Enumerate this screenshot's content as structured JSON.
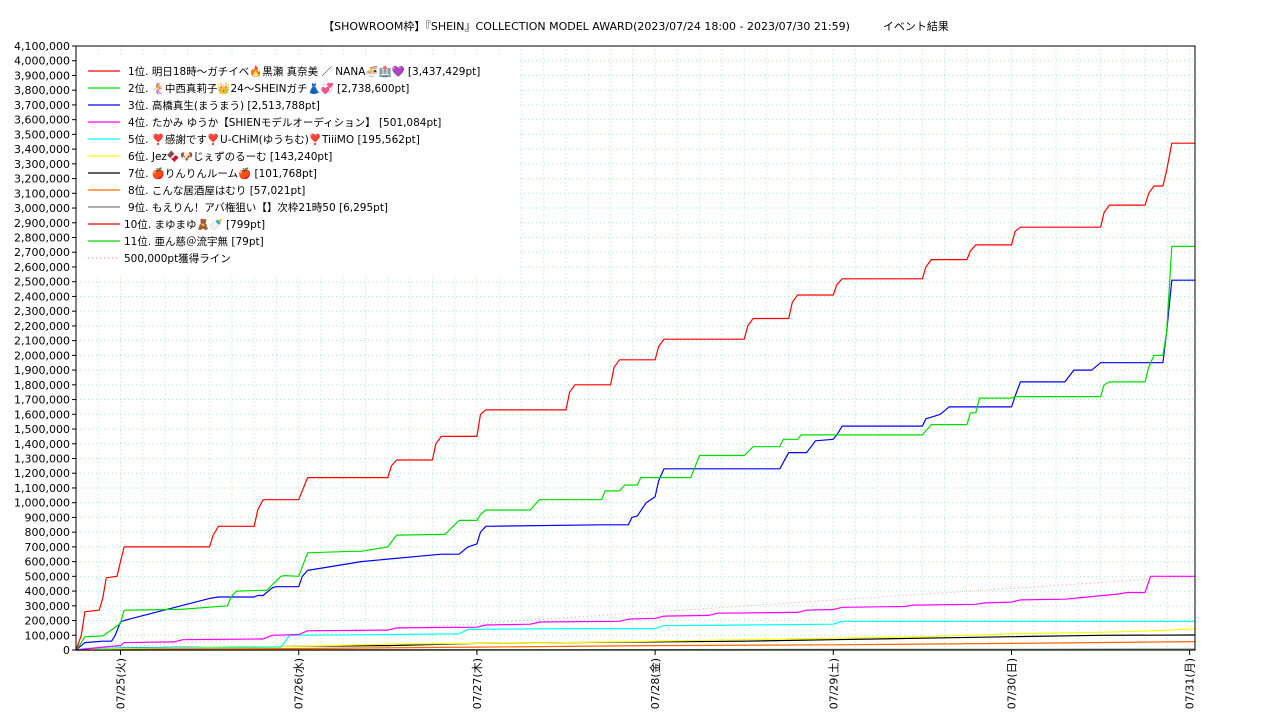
{
  "chart_data": {
    "type": "line",
    "title": "【SHOWROOM枠】『SHEIN』COLLECTION MODEL AWARD(2023/07/24 18:00 - 2023/07/30 21:59)　　　イベント結果",
    "ylim": [
      0,
      4100000
    ],
    "yticks": [
      0,
      100000,
      200000,
      300000,
      400000,
      500000,
      600000,
      700000,
      800000,
      900000,
      1000000,
      1100000,
      1200000,
      1300000,
      1400000,
      1500000,
      1600000,
      1700000,
      1800000,
      1900000,
      2000000,
      2100000,
      2200000,
      2300000,
      2400000,
      2500000,
      2600000,
      2700000,
      2800000,
      2900000,
      3000000,
      3100000,
      3200000,
      3300000,
      3400000,
      3500000,
      3600000,
      3700000,
      3800000,
      3900000,
      4000000,
      4100000
    ],
    "ytick_labels": [
      "0",
      "100,000",
      "200,000",
      "300,000",
      "400,000",
      "500,000",
      "600,000",
      "700,000",
      "800,000",
      "900,000",
      "1,000,000",
      "1,100,000",
      "1,200,000",
      "1,300,000",
      "1,400,000",
      "1,500,000",
      "1,600,000",
      "1,700,000",
      "1,800,000",
      "1,900,000",
      "2,000,000",
      "2,100,000",
      "2,200,000",
      "2,300,000",
      "2,400,000",
      "2,500,000",
      "2,600,000",
      "2,700,000",
      "2,800,000",
      "2,900,000",
      "3,000,000",
      "3,100,000",
      "3,200,000",
      "3,300,000",
      "3,400,000",
      "3,500,000",
      "3,600,000",
      "3,700,000",
      "3,800,000",
      "3,900,000",
      "4,000,000",
      "4,100,000"
    ],
    "xlim": [
      -0.25,
      6.03
    ],
    "xticks": [
      0,
      1,
      2,
      3,
      4,
      5,
      6
    ],
    "xtick_labels": [
      "07/25(火)",
      "07/26(水)",
      "07/27(木)",
      "07/28(金)",
      "07/29(土)",
      "07/30(日)",
      "07/31(月)"
    ],
    "grid": true,
    "legend_position": "top-left",
    "series": [
      {
        "name": "1位. 明日18時〜ガチイベ🔥黒瀬 真奈美 ／ NANA🍜🏥💜 [3,437,429pt]",
        "color": "#ff0000",
        "x": [
          -0.25,
          -0.22,
          -0.2,
          -0.12,
          -0.1,
          -0.08,
          -0.02,
          0.0,
          0.02,
          0.5,
          0.52,
          0.55,
          0.75,
          0.77,
          0.8,
          1.0,
          1.05,
          1.5,
          1.52,
          1.55,
          1.75,
          1.77,
          1.8,
          2.0,
          2.02,
          2.05,
          2.5,
          2.52,
          2.55,
          2.75,
          2.77,
          2.8,
          3.0,
          3.02,
          3.05,
          3.5,
          3.52,
          3.55,
          3.75,
          3.77,
          3.8,
          4.0,
          4.02,
          4.05,
          4.5,
          4.52,
          4.55,
          4.75,
          4.77,
          4.8,
          5.0,
          5.02,
          5.05,
          5.5,
          5.52,
          5.55,
          5.75,
          5.77,
          5.8,
          5.85,
          5.87,
          5.9,
          6.03
        ],
        "y": [
          0,
          100000,
          260000,
          270000,
          350000,
          490000,
          500000,
          600000,
          700000,
          700000,
          780000,
          840000,
          840000,
          950000,
          1020000,
          1020000,
          1170000,
          1170000,
          1250000,
          1290000,
          1290000,
          1400000,
          1450000,
          1450000,
          1600000,
          1630000,
          1630000,
          1750000,
          1800000,
          1800000,
          1920000,
          1970000,
          1970000,
          2060000,
          2110000,
          2110000,
          2200000,
          2250000,
          2250000,
          2360000,
          2410000,
          2410000,
          2480000,
          2520000,
          2520000,
          2600000,
          2650000,
          2650000,
          2710000,
          2750000,
          2750000,
          2840000,
          2870000,
          2870000,
          2970000,
          3020000,
          3020000,
          3100000,
          3150000,
          3150000,
          3250000,
          3440000,
          3440000
        ]
      },
      {
        "name": "2位. 🧜‍♀️中西真莉子👑24〜SHEINガチ👗💞 [2,738,600pt]",
        "color": "#00dd00",
        "x": [
          -0.25,
          -0.22,
          -0.2,
          -0.1,
          0.0,
          0.02,
          0.3,
          0.33,
          0.6,
          0.62,
          0.65,
          0.8,
          0.82,
          0.9,
          0.92,
          1.0,
          1.05,
          1.3,
          1.35,
          1.5,
          1.55,
          1.8,
          1.82,
          1.9,
          1.92,
          2.0,
          2.02,
          2.05,
          2.3,
          2.35,
          2.7,
          2.72,
          2.8,
          2.83,
          2.9,
          2.92,
          3.2,
          3.25,
          3.5,
          3.55,
          3.7,
          3.72,
          3.8,
          3.82,
          3.9,
          3.92,
          4.0,
          4.02,
          4.5,
          4.55,
          4.75,
          4.77,
          4.8,
          4.82,
          5.0,
          5.02,
          5.5,
          5.52,
          5.55,
          5.75,
          5.77,
          5.8,
          5.85,
          5.87,
          5.9,
          6.03
        ],
        "y": [
          0,
          50000,
          90000,
          95000,
          180000,
          270000,
          275000,
          275000,
          300000,
          360000,
          400000,
          405000,
          405000,
          500000,
          505000,
          500000,
          660000,
          670000,
          670000,
          700000,
          780000,
          785000,
          785000,
          880000,
          880000,
          880000,
          920000,
          950000,
          950000,
          1020000,
          1020000,
          1080000,
          1080000,
          1120000,
          1120000,
          1170000,
          1170000,
          1320000,
          1320000,
          1380000,
          1380000,
          1430000,
          1430000,
          1460000,
          1460000,
          1460000,
          1460000,
          1460000,
          1460000,
          1530000,
          1530000,
          1610000,
          1610000,
          1710000,
          1710000,
          1720000,
          1720000,
          1800000,
          1820000,
          1820000,
          1920000,
          2000000,
          2000000,
          2150000,
          2740000,
          2740000
        ],
        "note": ""
      },
      {
        "name": "3位. 高橋真生(まうまう) [2,513,788pt]",
        "color": "#0000ff",
        "x": [
          -0.25,
          -0.22,
          -0.2,
          -0.1,
          -0.05,
          -0.03,
          0.0,
          0.02,
          0.05,
          0.5,
          0.55,
          0.75,
          0.77,
          0.8,
          0.85,
          0.87,
          0.9,
          1.0,
          1.02,
          1.05,
          1.3,
          1.35,
          1.8,
          1.82,
          1.85,
          1.9,
          1.95,
          2.0,
          2.02,
          2.05,
          2.7,
          2.72,
          2.75,
          2.85,
          2.87,
          2.9,
          2.95,
          3.0,
          3.02,
          3.05,
          3.7,
          3.75,
          3.85,
          3.9,
          4.0,
          4.02,
          4.05,
          4.5,
          4.52,
          4.55,
          4.6,
          4.65,
          5.0,
          5.02,
          5.05,
          5.3,
          5.35,
          5.45,
          5.5,
          5.55,
          5.6,
          5.65,
          5.75,
          5.8,
          5.85,
          5.87,
          5.9,
          5.95,
          6.03
        ],
        "y": [
          0,
          30000,
          50000,
          60000,
          60000,
          100000,
          190000,
          200000,
          210000,
          350000,
          360000,
          360000,
          370000,
          370000,
          420000,
          430000,
          430000,
          430000,
          500000,
          540000,
          590000,
          600000,
          650000,
          650000,
          650000,
          650000,
          700000,
          720000,
          800000,
          840000,
          850000,
          850000,
          850000,
          850000,
          900000,
          910000,
          1000000,
          1040000,
          1150000,
          1230000,
          1230000,
          1340000,
          1340000,
          1420000,
          1430000,
          1460000,
          1520000,
          1520000,
          1570000,
          1580000,
          1600000,
          1650000,
          1650000,
          1720000,
          1820000,
          1820000,
          1900000,
          1900000,
          1950000,
          1950000,
          1950000,
          1950000,
          1950000,
          1950000,
          1950000,
          2150000,
          2510000,
          2510000,
          2510000
        ],
        "note": ""
      },
      {
        "name": "4位. たかみ ゆうか【SHIENモデルオーディション】 [501,084pt]",
        "color": "#ff00ff",
        "x": [
          -0.25,
          -0.1,
          0.0,
          0.02,
          0.3,
          0.35,
          0.8,
          0.85,
          1.0,
          1.05,
          1.5,
          1.55,
          2.0,
          2.05,
          2.3,
          2.35,
          2.8,
          2.85,
          3.0,
          3.05,
          3.3,
          3.35,
          3.8,
          3.85,
          4.0,
          4.05,
          4.4,
          4.45,
          4.8,
          4.85,
          5.0,
          5.05,
          5.3,
          5.35,
          5.6,
          5.65,
          5.75,
          5.78,
          6.03
        ],
        "y": [
          0,
          20000,
          30000,
          50000,
          55000,
          70000,
          75000,
          100000,
          105000,
          130000,
          135000,
          150000,
          155000,
          170000,
          175000,
          190000,
          195000,
          210000,
          215000,
          230000,
          235000,
          250000,
          255000,
          270000,
          275000,
          290000,
          295000,
          305000,
          310000,
          320000,
          325000,
          340000,
          345000,
          350000,
          380000,
          390000,
          390000,
          500000,
          500000
        ]
      },
      {
        "name": "5位. ❣️感謝です❣️U-CHiM(ゆうちむ)❣️TiiiMO [195,562pt]",
        "color": "#00ffff",
        "x": [
          -0.25,
          -0.2,
          0.0,
          0.5,
          0.9,
          0.95,
          1.5,
          1.55,
          1.9,
          1.95,
          2.5,
          3.0,
          3.05,
          3.5,
          4.0,
          4.05,
          4.5,
          5.0,
          5.5,
          6.03
        ],
        "y": [
          0,
          10000,
          15000,
          15000,
          20000,
          100000,
          105000,
          105000,
          110000,
          140000,
          145000,
          145000,
          165000,
          170000,
          175000,
          195000,
          195000,
          195000,
          195000,
          195000
        ]
      },
      {
        "name": "6位. Jez🍫🐶じぇずのるーむ [143,240pt]",
        "color": "#ffff00",
        "x": [
          -0.25,
          0.0,
          0.5,
          1.0,
          1.5,
          2.0,
          2.5,
          3.0,
          3.5,
          4.0,
          4.5,
          5.0,
          5.5,
          5.8,
          6.03
        ],
        "y": [
          0,
          10000,
          20000,
          25000,
          40000,
          45000,
          50000,
          60000,
          70000,
          80000,
          90000,
          110000,
          120000,
          130000,
          143000
        ]
      },
      {
        "name": "7位. 🍎りんりんルーム🍎 [101,768pt]",
        "color": "#000000",
        "x": [
          -0.25,
          0.0,
          0.5,
          1.0,
          1.5,
          2.0,
          2.5,
          3.0,
          3.5,
          4.0,
          4.5,
          5.0,
          5.5,
          6.03
        ],
        "y": [
          0,
          15000,
          20000,
          25000,
          30000,
          45000,
          50000,
          55000,
          60000,
          70000,
          80000,
          90000,
          100000,
          101768
        ]
      },
      {
        "name": "8位. こんな居酒屋はむり [57,021pt]",
        "color": "#ff6600",
        "x": [
          -0.25,
          0.0,
          1.0,
          2.0,
          3.0,
          4.0,
          5.0,
          6.03
        ],
        "y": [
          0,
          5000,
          10000,
          20000,
          30000,
          35000,
          45000,
          57000
        ]
      },
      {
        "name": "9位. もえりん！アバ権狙い【】次枠21時50 [6,295pt]",
        "color": "#808080",
        "x": [
          -0.25,
          1.0,
          2.0,
          3.0,
          4.0,
          5.0,
          6.03
        ],
        "y": [
          0,
          1000,
          2000,
          3000,
          4000,
          5000,
          6295
        ]
      },
      {
        "name": "10位. まゆまゆ🧸🍼 [799pt]",
        "color": "#ff0000",
        "x": [
          -0.25,
          6.03
        ],
        "y": [
          0,
          799
        ]
      },
      {
        "name": "11位. 亜ん慈＠流宇無 [79pt]",
        "color": "#00dd00",
        "x": [
          -0.25,
          6.03
        ],
        "y": [
          0,
          79
        ]
      }
    ],
    "reference_line": {
      "name": "500,000pt獲得ライン",
      "color": "#ff9999",
      "x": [
        -0.25,
        6.03
      ],
      "y": [
        0,
        500000
      ]
    }
  }
}
